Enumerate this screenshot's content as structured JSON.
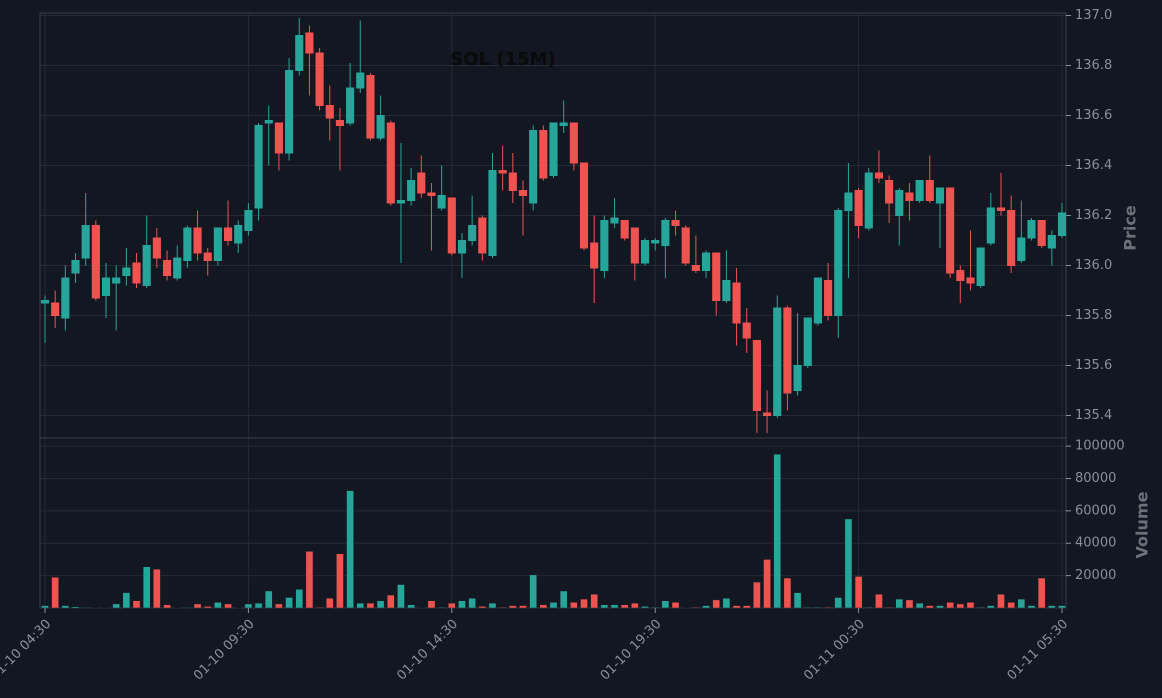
{
  "chart_data": {
    "type": "candlestick",
    "title": "SOL (15M)",
    "categories": [
      "01-10 04:30",
      null,
      null,
      null,
      null,
      null,
      null,
      null,
      null,
      null,
      null,
      null,
      null,
      null,
      null,
      null,
      null,
      null,
      null,
      null,
      "01-10 09:30",
      null,
      null,
      null,
      null,
      null,
      null,
      null,
      null,
      null,
      null,
      null,
      null,
      null,
      null,
      null,
      null,
      null,
      null,
      null,
      "01-10 14:30",
      null,
      null,
      null,
      null,
      null,
      null,
      null,
      null,
      null,
      null,
      null,
      null,
      null,
      null,
      null,
      null,
      null,
      null,
      null,
      "01-10 19:30",
      null,
      null,
      null,
      null,
      null,
      null,
      null,
      null,
      null,
      null,
      null,
      null,
      null,
      null,
      null,
      null,
      null,
      null,
      null,
      "01-11 00:30",
      null,
      null,
      null,
      null,
      null,
      null,
      null,
      null,
      null,
      null,
      null,
      null,
      null,
      null,
      null,
      null,
      null,
      null,
      null,
      "01-11 05:30"
    ],
    "open": [
      135.85,
      135.85,
      135.79,
      135.97,
      136.03,
      136.16,
      135.88,
      135.93,
      135.96,
      136.01,
      135.92,
      136.11,
      136.02,
      135.95,
      136.02,
      136.15,
      136.05,
      136.02,
      136.15,
      136.09,
      136.14,
      136.23,
      136.57,
      136.57,
      136.45,
      136.78,
      136.93,
      136.85,
      136.64,
      136.58,
      136.57,
      136.71,
      136.76,
      136.51,
      136.57,
      136.25,
      136.26,
      136.37,
      136.29,
      136.23,
      136.27,
      136.05,
      136.1,
      136.19,
      136.04,
      136.38,
      136.37,
      136.3,
      136.25,
      136.54,
      136.36,
      136.56,
      136.57,
      136.41,
      136.09,
      135.98,
      136.17,
      136.18,
      136.15,
      136.01,
      136.09,
      136.08,
      136.18,
      136.15,
      136.0,
      135.98,
      136.05,
      135.86,
      135.93,
      135.77,
      135.7,
      135.41,
      135.4,
      135.83,
      135.5,
      135.6,
      135.77,
      135.94,
      135.8,
      136.22,
      136.3,
      136.15,
      136.37,
      136.34,
      136.2,
      136.29,
      136.26,
      136.34,
      136.25,
      136.31,
      135.98,
      135.95,
      135.92,
      136.09,
      136.23,
      136.22,
      136.02,
      136.11,
      136.18,
      136.07,
      136.12
    ],
    "high": [
      135.88,
      135.9,
      136.0,
      136.05,
      136.29,
      136.18,
      136.01,
      136.0,
      136.07,
      136.05,
      136.2,
      136.15,
      136.06,
      136.08,
      136.16,
      136.22,
      136.07,
      136.15,
      136.26,
      136.18,
      136.25,
      136.57,
      136.64,
      136.57,
      136.83,
      136.99,
      136.96,
      136.87,
      136.72,
      136.63,
      136.81,
      136.98,
      136.77,
      136.68,
      136.58,
      136.49,
      136.39,
      136.44,
      136.33,
      136.4,
      136.27,
      136.13,
      136.28,
      136.2,
      136.45,
      136.48,
      136.45,
      136.34,
      136.56,
      136.56,
      136.57,
      136.66,
      136.57,
      136.41,
      136.2,
      136.2,
      136.27,
      136.18,
      136.15,
      136.11,
      136.11,
      136.19,
      136.22,
      136.16,
      136.12,
      136.06,
      136.05,
      136.06,
      135.99,
      135.83,
      135.7,
      135.5,
      135.88,
      135.84,
      135.81,
      135.79,
      135.95,
      136.01,
      136.23,
      136.41,
      136.31,
      136.39,
      136.46,
      136.36,
      136.31,
      136.33,
      136.34,
      136.44,
      136.31,
      136.31,
      136.0,
      136.14,
      136.07,
      136.29,
      136.37,
      136.28,
      136.26,
      136.19,
      136.18,
      136.14,
      136.25
    ],
    "low": [
      135.69,
      135.75,
      135.74,
      135.93,
      136.0,
      135.86,
      135.79,
      135.74,
      135.92,
      135.91,
      135.91,
      135.99,
      135.94,
      135.94,
      135.99,
      136.02,
      135.96,
      136.0,
      136.08,
      136.05,
      136.12,
      136.18,
      136.4,
      136.38,
      136.42,
      136.76,
      136.68,
      136.62,
      136.5,
      136.38,
      136.56,
      136.69,
      136.5,
      136.5,
      136.24,
      136.01,
      136.24,
      136.27,
      136.06,
      136.22,
      136.04,
      135.95,
      136.08,
      136.02,
      136.03,
      136.3,
      136.25,
      136.12,
      136.22,
      136.34,
      136.35,
      136.53,
      136.38,
      136.06,
      135.85,
      135.95,
      136.15,
      136.1,
      135.94,
      136.0,
      136.06,
      135.95,
      136.12,
      136.0,
      135.97,
      135.95,
      135.8,
      135.85,
      135.68,
      135.65,
      135.33,
      135.33,
      135.39,
      135.42,
      135.48,
      135.59,
      135.76,
      135.78,
      135.71,
      135.95,
      136.11,
      136.14,
      136.33,
      136.17,
      136.08,
      136.18,
      136.25,
      136.25,
      136.07,
      135.95,
      135.85,
      135.9,
      135.91,
      136.08,
      136.2,
      135.97,
      136.01,
      136.1,
      136.07,
      136.0,
      136.11
    ],
    "close": [
      135.86,
      135.8,
      135.95,
      136.02,
      136.16,
      135.87,
      135.95,
      135.95,
      135.99,
      135.93,
      136.08,
      136.03,
      135.96,
      136.03,
      136.15,
      136.05,
      136.02,
      136.15,
      136.1,
      136.16,
      136.22,
      136.56,
      136.58,
      136.45,
      136.78,
      136.92,
      136.85,
      136.64,
      136.59,
      136.56,
      136.71,
      136.77,
      136.51,
      136.6,
      136.25,
      136.26,
      136.34,
      136.29,
      136.28,
      136.28,
      136.05,
      136.1,
      136.16,
      136.05,
      136.38,
      136.37,
      136.3,
      136.28,
      136.54,
      136.35,
      136.57,
      136.57,
      136.41,
      136.07,
      135.99,
      136.18,
      136.19,
      136.11,
      136.01,
      136.1,
      136.1,
      136.18,
      136.16,
      136.01,
      135.98,
      136.05,
      135.86,
      135.94,
      135.77,
      135.71,
      135.42,
      135.4,
      135.83,
      135.49,
      135.6,
      135.79,
      135.95,
      135.8,
      136.22,
      136.29,
      136.16,
      136.37,
      136.35,
      136.25,
      136.3,
      136.26,
      136.34,
      136.26,
      136.31,
      135.97,
      135.94,
      135.93,
      136.07,
      136.23,
      136.22,
      136.0,
      136.11,
      136.18,
      136.08,
      136.12,
      136.21
    ],
    "volume": [
      1500,
      19000,
      1500,
      800,
      400,
      300,
      300,
      2500,
      9500,
      4500,
      25500,
      24000,
      2000,
      200,
      400,
      2500,
      1000,
      3500,
      2500,
      200,
      2500,
      3000,
      10500,
      2500,
      6500,
      11500,
      35000,
      500,
      6000,
      33500,
      72500,
      3000,
      3000,
      4500,
      8000,
      14500,
      2000,
      200,
      4500,
      500,
      3000,
      4500,
      6000,
      1000,
      3000,
      500,
      1500,
      1500,
      20500,
      2000,
      3500,
      10500,
      3500,
      5500,
      8500,
      2000,
      2000,
      2000,
      3000,
      1000,
      500,
      4500,
      3500,
      300,
      500,
      1500,
      5000,
      6000,
      1500,
      1500,
      16000,
      30000,
      95000,
      18500,
      9500,
      500,
      500,
      500,
      6500,
      55000,
      19500,
      500,
      8500,
      500,
      5500,
      5000,
      3000,
      1500,
      1500,
      3500,
      2500,
      3500,
      500,
      1500,
      8500,
      3500,
      5500,
      1500,
      18500,
      1500,
      1500
    ],
    "up_color": "#26a69a",
    "down_color": "#ef5350",
    "ylabel": "Price",
    "ylim": [
      135.31,
      137.01
    ],
    "yticks": [
      {
        "value": 135.4,
        "label": "135.4"
      },
      {
        "value": 135.6,
        "label": "135.6"
      },
      {
        "value": 135.8,
        "label": "135.8"
      },
      {
        "value": 136.0,
        "label": "136.0"
      },
      {
        "value": 136.2,
        "label": "136.2"
      },
      {
        "value": 136.4,
        "label": "136.4"
      },
      {
        "value": 136.6,
        "label": "136.6"
      },
      {
        "value": 136.8,
        "label": "136.8"
      },
      {
        "value": 137.0,
        "label": "137.0"
      }
    ],
    "y2label": "Volume",
    "y2lim": [
      0,
      105000
    ],
    "y2ticks": [
      20000,
      40000,
      60000,
      80000,
      100000
    ],
    "grid": true
  }
}
